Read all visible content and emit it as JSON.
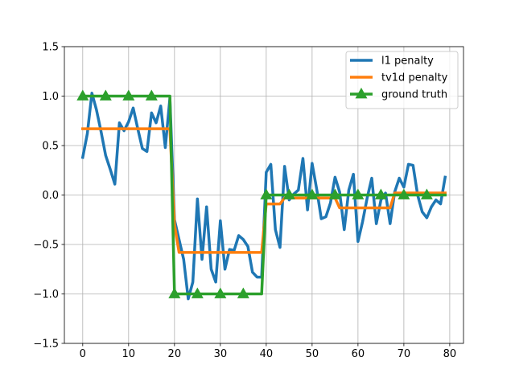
{
  "chart_data": {
    "type": "line",
    "title": "",
    "xlabel": "",
    "ylabel": "",
    "xlim": [
      -4,
      83
    ],
    "ylim": [
      -1.5,
      1.5
    ],
    "x_ticks": [
      0,
      10,
      20,
      30,
      40,
      50,
      60,
      70,
      80
    ],
    "y_ticks": [
      -1.5,
      -1.0,
      -0.5,
      0.0,
      0.5,
      1.0,
      1.5
    ],
    "x_tick_labels": [
      "0",
      "10",
      "20",
      "30",
      "40",
      "50",
      "60",
      "70",
      "80"
    ],
    "y_tick_labels": [
      "−1.5",
      "−1.0",
      "−0.5",
      "0.0",
      "0.5",
      "1.0",
      "1.5"
    ],
    "grid": true,
    "legend_position": "top-right",
    "series": [
      {
        "name": "l1 penalty",
        "color": "#1f77b4",
        "marker": "none",
        "x": [
          0,
          1,
          2,
          3,
          4,
          5,
          6,
          7,
          8,
          9,
          10,
          11,
          12,
          13,
          14,
          15,
          16,
          17,
          18,
          19,
          20,
          21,
          22,
          23,
          24,
          25,
          26,
          27,
          28,
          29,
          30,
          31,
          32,
          33,
          34,
          35,
          36,
          37,
          38,
          39,
          40,
          41,
          42,
          43,
          44,
          45,
          46,
          47,
          48,
          49,
          50,
          51,
          52,
          53,
          54,
          55,
          56,
          57,
          58,
          59,
          60,
          61,
          62,
          63,
          64,
          65,
          66,
          67,
          68,
          69,
          70,
          71,
          72,
          73,
          74,
          75,
          76,
          77,
          78,
          79
        ],
        "y": [
          0.38,
          0.62,
          1.03,
          0.86,
          0.64,
          0.4,
          0.26,
          0.11,
          0.73,
          0.65,
          0.74,
          0.88,
          0.67,
          0.47,
          0.44,
          0.83,
          0.73,
          0.9,
          0.48,
          0.98,
          -0.25,
          -0.45,
          -0.65,
          -1.05,
          -0.88,
          -0.04,
          -0.65,
          -0.12,
          -0.75,
          -0.88,
          -0.26,
          -0.75,
          -0.55,
          -0.56,
          -0.41,
          -0.45,
          -0.52,
          -0.78,
          -0.83,
          -0.83,
          0.23,
          0.31,
          -0.35,
          -0.53,
          0.29,
          -0.05,
          0.01,
          0.05,
          0.37,
          -0.15,
          0.32,
          0.06,
          -0.24,
          -0.22,
          -0.08,
          0.18,
          0.03,
          -0.35,
          0.05,
          0.21,
          -0.47,
          -0.27,
          -0.03,
          0.17,
          -0.29,
          -0.05,
          0.02,
          -0.29,
          0.03,
          0.17,
          0.08,
          0.31,
          0.3,
          0.0,
          -0.17,
          -0.23,
          -0.12,
          -0.05,
          -0.09,
          0.18
        ]
      },
      {
        "name": "tv1d penalty",
        "color": "#ff7f0e",
        "marker": "none",
        "x": [
          0,
          18,
          19,
          20,
          21,
          22,
          39,
          40,
          41,
          42,
          43,
          44,
          45,
          55,
          56,
          57,
          66,
          67,
          68,
          69,
          79
        ],
        "y": [
          0.67,
          0.67,
          0.67,
          -0.3,
          -0.58,
          -0.58,
          -0.58,
          -0.09,
          -0.09,
          -0.09,
          -0.09,
          -0.03,
          -0.03,
          -0.03,
          -0.13,
          -0.13,
          -0.13,
          -0.13,
          0.02,
          0.02,
          0.02
        ]
      },
      {
        "name": "ground truth",
        "color": "#2ca02c",
        "marker": "triangle",
        "marker_every": 5,
        "x": [
          0,
          1,
          2,
          3,
          4,
          5,
          6,
          7,
          8,
          9,
          10,
          11,
          12,
          13,
          14,
          15,
          16,
          17,
          18,
          19,
          20,
          21,
          22,
          23,
          24,
          25,
          26,
          27,
          28,
          29,
          30,
          31,
          32,
          33,
          34,
          35,
          36,
          37,
          38,
          39,
          40,
          41,
          42,
          43,
          44,
          45,
          46,
          47,
          48,
          49,
          50,
          51,
          52,
          53,
          54,
          55,
          56,
          57,
          58,
          59,
          60,
          61,
          62,
          63,
          64,
          65,
          66,
          67,
          68,
          69,
          70,
          71,
          72,
          73,
          74,
          75,
          76,
          77,
          78,
          79
        ],
        "y": [
          1,
          1,
          1,
          1,
          1,
          1,
          1,
          1,
          1,
          1,
          1,
          1,
          1,
          1,
          1,
          1,
          1,
          1,
          1,
          1,
          -1,
          -1,
          -1,
          -1,
          -1,
          -1,
          -1,
          -1,
          -1,
          -1,
          -1,
          -1,
          -1,
          -1,
          -1,
          -1,
          -1,
          -1,
          -1,
          -1,
          0,
          0,
          0,
          0,
          0,
          0,
          0,
          0,
          0,
          0,
          0,
          0,
          0,
          0,
          0,
          0,
          0,
          0,
          0,
          0,
          0,
          0,
          0,
          0,
          0,
          0,
          0,
          0,
          0,
          0,
          0,
          0,
          0,
          0,
          0,
          0,
          0,
          0,
          0,
          0
        ]
      }
    ]
  }
}
